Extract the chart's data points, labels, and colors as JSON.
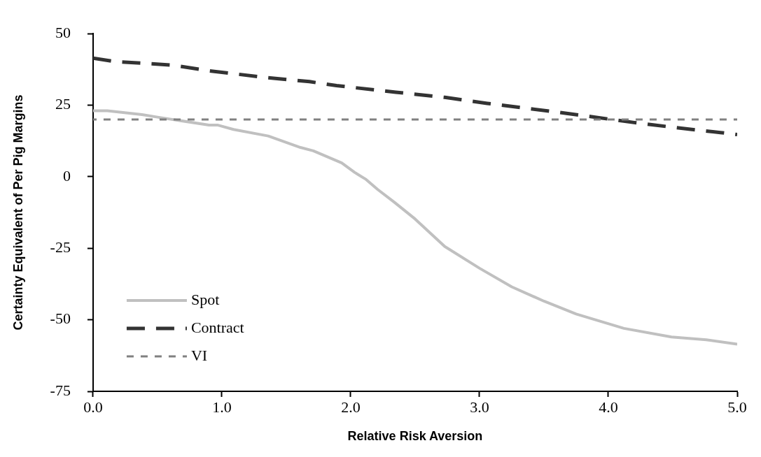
{
  "chart_data": {
    "type": "line",
    "xlabel": "Relative Risk Aversion",
    "ylabel": "Certainty Equivalent of Per Pig Margins",
    "xlim": [
      0,
      5
    ],
    "xticks": [
      {
        "value": 0,
        "label": "0.0"
      },
      {
        "value": 1,
        "label": "1.0"
      },
      {
        "value": 2,
        "label": "2.0"
      },
      {
        "value": 3,
        "label": "3.0"
      },
      {
        "value": 4,
        "label": "4.0"
      },
      {
        "value": 5,
        "label": "5.0"
      }
    ],
    "ylim": [
      -75,
      50
    ],
    "yticks": [
      -75,
      -50,
      -25,
      0,
      25,
      50
    ],
    "grid": false,
    "legend": "bottom left",
    "marker": "none",
    "series": [
      {
        "name": "Spot",
        "color": "#c0c0c0",
        "line_style": "solid",
        "x": [
          0,
          0.11,
          0.38,
          0.5,
          0.9,
          0.97,
          1.09,
          1.36,
          1.61,
          1.71,
          1.93,
          2.03,
          2.12,
          2.21,
          2.34,
          2.5,
          2.73,
          3.0,
          3.25,
          3.5,
          3.75,
          4.12,
          4.49,
          4.76,
          5.0
        ],
        "values": [
          23,
          23,
          21.7,
          20.8,
          18,
          18,
          16.5,
          14.2,
          10.2,
          9,
          4.8,
          1.5,
          -1,
          -4.5,
          -9,
          -14.8,
          -24.4,
          -32,
          -38.5,
          -43.5,
          -48,
          -53,
          -56,
          -57,
          -58.5
        ]
      },
      {
        "name": "Contract",
        "color": "#333333",
        "line_style": "dashed",
        "x": [
          0,
          0.17,
          0.61,
          0.9,
          1.33,
          1.68,
          1.89,
          2.35,
          2.73,
          3.06,
          3.54,
          3.86,
          4.2,
          4.53,
          4.87,
          5.0
        ],
        "values": [
          41.4,
          40.2,
          39,
          37,
          34.7,
          33.2,
          31.8,
          29.5,
          27.7,
          25.6,
          22.9,
          21,
          18.9,
          17.1,
          15.4,
          14.7
        ]
      },
      {
        "name": "VI",
        "color": "#808080",
        "line_style": "dotted",
        "x": [
          0,
          5
        ],
        "values": [
          20,
          20
        ]
      }
    ]
  }
}
